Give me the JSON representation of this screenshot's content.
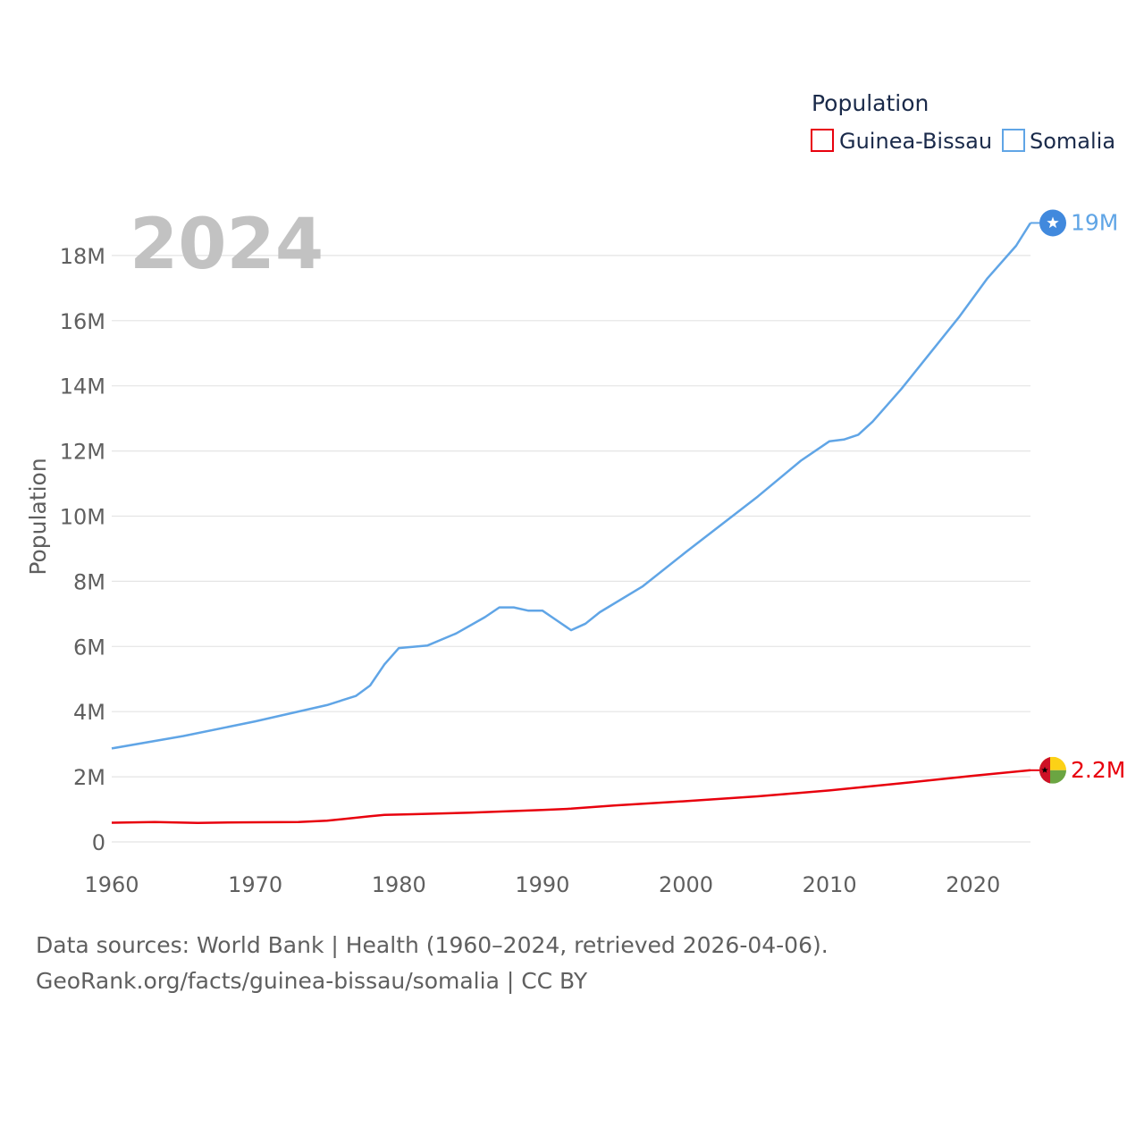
{
  "chart_data": {
    "type": "line",
    "year_label": "2024",
    "ylabel": "Population",
    "legend_title": "Population",
    "ylim": [
      0,
      19500000
    ],
    "xlim": [
      1960,
      2024
    ],
    "y_ticks": [
      {
        "value": 0,
        "label": "0"
      },
      {
        "value": 2000000,
        "label": "2M"
      },
      {
        "value": 4000000,
        "label": "4M"
      },
      {
        "value": 6000000,
        "label": "6M"
      },
      {
        "value": 8000000,
        "label": "8M"
      },
      {
        "value": 10000000,
        "label": "10M"
      },
      {
        "value": 12000000,
        "label": "12M"
      },
      {
        "value": 14000000,
        "label": "14M"
      },
      {
        "value": 16000000,
        "label": "16M"
      },
      {
        "value": 18000000,
        "label": "18M"
      }
    ],
    "x_ticks": [
      {
        "value": 1960,
        "label": "1960"
      },
      {
        "value": 1970,
        "label": "1970"
      },
      {
        "value": 1980,
        "label": "1980"
      },
      {
        "value": 1990,
        "label": "1990"
      },
      {
        "value": 2000,
        "label": "2000"
      },
      {
        "value": 2010,
        "label": "2010"
      },
      {
        "value": 2020,
        "label": "2020"
      }
    ],
    "series": [
      {
        "name": "Guinea-Bissau",
        "color": "#e8000d",
        "end_label": "2.2M",
        "flag": "guinea-bissau-flag-icon",
        "points": [
          [
            1960,
            590000
          ],
          [
            1963,
            610000
          ],
          [
            1966,
            585000
          ],
          [
            1969,
            600000
          ],
          [
            1973,
            610000
          ],
          [
            1975,
            650000
          ],
          [
            1978,
            790000
          ],
          [
            1979,
            830000
          ],
          [
            1981,
            850000
          ],
          [
            1985,
            900000
          ],
          [
            1990,
            980000
          ],
          [
            1992,
            1020000
          ],
          [
            1995,
            1120000
          ],
          [
            2000,
            1250000
          ],
          [
            2005,
            1400000
          ],
          [
            2010,
            1580000
          ],
          [
            2015,
            1800000
          ],
          [
            2020,
            2030000
          ],
          [
            2024,
            2200000
          ]
        ]
      },
      {
        "name": "Somalia",
        "color": "#60a5e6",
        "end_label": "19M",
        "flag": "somalia-flag-icon",
        "points": [
          [
            1960,
            2870000
          ],
          [
            1965,
            3250000
          ],
          [
            1970,
            3700000
          ],
          [
            1975,
            4200000
          ],
          [
            1977,
            4480000
          ],
          [
            1978,
            4800000
          ],
          [
            1979,
            5450000
          ],
          [
            1980,
            5950000
          ],
          [
            1982,
            6030000
          ],
          [
            1984,
            6400000
          ],
          [
            1986,
            6900000
          ],
          [
            1987,
            7200000
          ],
          [
            1988,
            7200000
          ],
          [
            1989,
            7100000
          ],
          [
            1990,
            7100000
          ],
          [
            1991,
            6800000
          ],
          [
            1992,
            6500000
          ],
          [
            1993,
            6700000
          ],
          [
            1994,
            7050000
          ],
          [
            1997,
            7850000
          ],
          [
            2000,
            8900000
          ],
          [
            2005,
            10600000
          ],
          [
            2008,
            11700000
          ],
          [
            2010,
            12300000
          ],
          [
            2011,
            12350000
          ],
          [
            2012,
            12500000
          ],
          [
            2013,
            12900000
          ],
          [
            2015,
            13900000
          ],
          [
            2017,
            15000000
          ],
          [
            2019,
            16100000
          ],
          [
            2021,
            17300000
          ],
          [
            2023,
            18300000
          ],
          [
            2024,
            19000000
          ]
        ]
      }
    ]
  },
  "footer": {
    "line1": "Data sources: World Bank | Health (1960–2024, retrieved 2026-04-06).",
    "line2": "GeoRank.org/facts/guinea-bissau/somalia | CC BY"
  }
}
